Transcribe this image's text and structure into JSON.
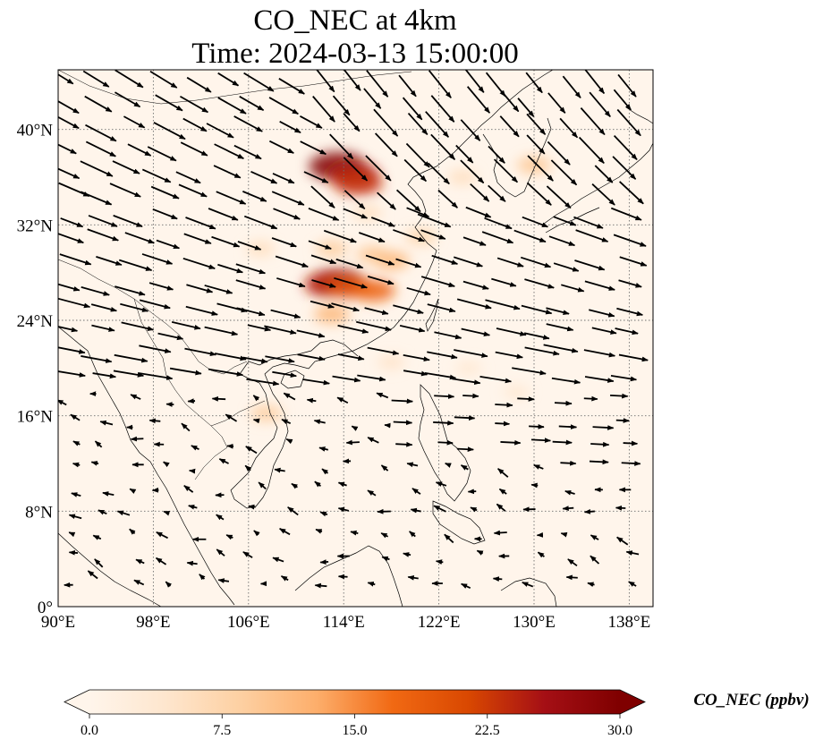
{
  "title": {
    "line1": "CO_NEC at 4km",
    "line2": "Time: 2024-03-13 15:00:00"
  },
  "map": {
    "extent": {
      "lon_min": 90,
      "lon_max": 140,
      "lat_min": 0,
      "lat_max": 45
    },
    "lon_ticks": [
      {
        "value": 90,
        "label": "90°E"
      },
      {
        "value": 98,
        "label": "98°E"
      },
      {
        "value": 106,
        "label": "106°E"
      },
      {
        "value": 114,
        "label": "114°E"
      },
      {
        "value": 122,
        "label": "122°E"
      },
      {
        "value": 130,
        "label": "130°E"
      },
      {
        "value": 138,
        "label": "138°E"
      }
    ],
    "lat_ticks": [
      {
        "value": 0,
        "label": "0°"
      },
      {
        "value": 8,
        "label": "8°N"
      },
      {
        "value": 16,
        "label": "16°N"
      },
      {
        "value": 24,
        "label": "24°N"
      },
      {
        "value": 32,
        "label": "32°N"
      },
      {
        "value": 40,
        "label": "40°N"
      }
    ],
    "gridlines": true,
    "background_color": "#fff5eb",
    "hotspots": [
      {
        "lon": 113.5,
        "lat": 36.9,
        "value": 30
      },
      {
        "lon": 114.8,
        "lat": 36.2,
        "value": 25
      },
      {
        "lon": 115.2,
        "lat": 35.5,
        "value": 23
      },
      {
        "lon": 113.5,
        "lat": 27.2,
        "value": 28
      },
      {
        "lon": 112.8,
        "lat": 27.0,
        "value": 24
      },
      {
        "lon": 114.5,
        "lat": 26.8,
        "value": 20
      },
      {
        "lon": 116.5,
        "lat": 26.5,
        "value": 18
      },
      {
        "lon": 118.0,
        "lat": 29.0,
        "value": 12
      },
      {
        "lon": 116.5,
        "lat": 29.5,
        "value": 10
      },
      {
        "lon": 113.0,
        "lat": 30.0,
        "value": 9
      },
      {
        "lon": 113.0,
        "lat": 24.5,
        "value": 12
      },
      {
        "lon": 107.0,
        "lat": 30.0,
        "value": 6
      },
      {
        "lon": 120.5,
        "lat": 31.0,
        "value": 8
      },
      {
        "lon": 116.0,
        "lat": 33.0,
        "value": 6
      },
      {
        "lon": 130.0,
        "lat": 37.0,
        "value": 10
      },
      {
        "lon": 107.5,
        "lat": 16.2,
        "value": 9
      },
      {
        "lon": 124.0,
        "lat": 36.0,
        "value": 6
      },
      {
        "lon": 118.0,
        "lat": 20.5,
        "value": 5
      },
      {
        "lon": 124.5,
        "lat": 20.0,
        "value": 4
      },
      {
        "lon": 128.5,
        "lat": 18.0,
        "value": 4
      }
    ],
    "wind_field": "eastward/southeastward arrows over China and ocean; southwestward over Indochina"
  },
  "colorbar": {
    "label": "CO_NEC (ppbv)",
    "min": 0,
    "max": 30,
    "extend": "both",
    "colormap": "OrRd",
    "ticks": [
      {
        "value": 0,
        "label": "0.0"
      },
      {
        "value": 7.5,
        "label": "7.5"
      },
      {
        "value": 15,
        "label": "15.0"
      },
      {
        "value": 22.5,
        "label": "22.5"
      },
      {
        "value": 30,
        "label": "30.0"
      }
    ],
    "colors": [
      "#fff5eb",
      "#fee6ce",
      "#fdd0a2",
      "#fdae6b",
      "#f16913",
      "#d94801",
      "#a50f15",
      "#7f0000"
    ]
  }
}
